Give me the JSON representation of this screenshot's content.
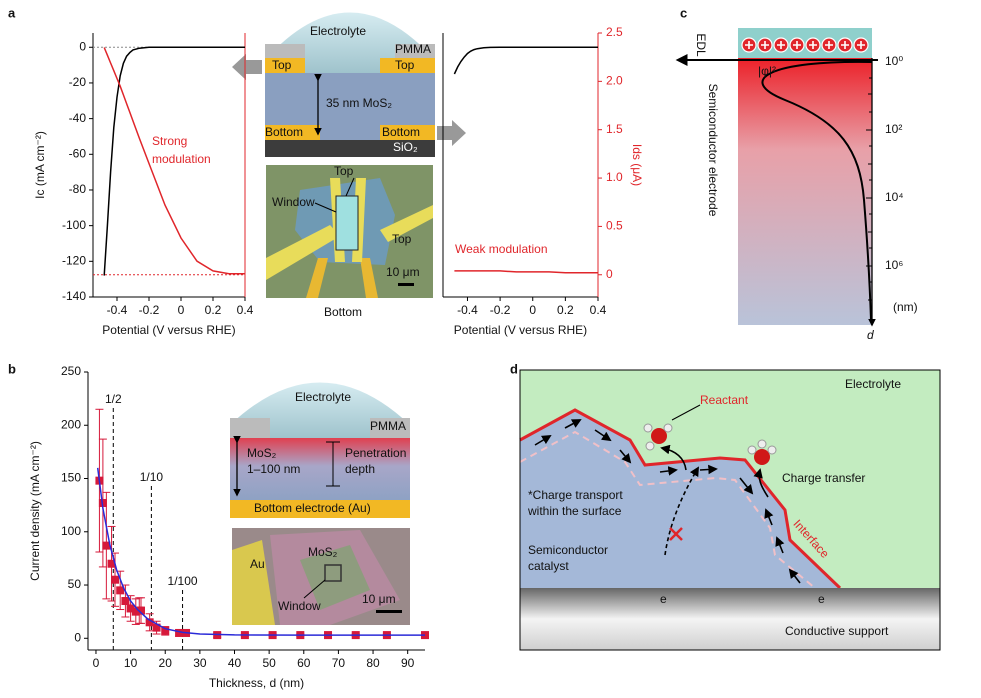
{
  "chart_data": [
    {
      "type": "line",
      "xlabel": "Potential (V versus RHE)",
      "ylabel": "Ic (mA cm⁻²)",
      "xlim": [
        -0.55,
        0.4
      ],
      "ylim": [
        -140,
        8
      ],
      "y2lim": [
        -0.23,
        2.5
      ],
      "xticks": [
        -0.4,
        -0.2,
        0,
        0.2,
        0.4
      ],
      "yticks": [
        0,
        -20,
        -40,
        -60,
        -80,
        -100,
        -120,
        -140
      ],
      "x": [
        -0.48,
        -0.46,
        -0.44,
        -0.42,
        -0.4,
        -0.38,
        -0.36,
        -0.34,
        -0.32,
        -0.3,
        -0.26,
        -0.2,
        -0.1,
        0,
        0.1,
        0.2,
        0.3,
        0.4
      ],
      "series": [
        {
          "color": "#000000",
          "values": [
            -128,
            -100,
            -70,
            -45,
            -28,
            -16,
            -9,
            -5,
            -3,
            -1.5,
            -0.5,
            0,
            0,
            0,
            0,
            0,
            0,
            0
          ]
        },
        {
          "color": "#e0262b",
          "axis": "y2",
          "values": [
            2.35,
            2.27,
            2.19,
            2.11,
            2.03,
            1.95,
            1.86,
            1.77,
            1.68,
            1.59,
            1.41,
            1.15,
            0.72,
            0.38,
            0.14,
            0.04,
            0.01,
            0.01
          ]
        }
      ],
      "annotation": [
        "Strong",
        "modulation"
      ]
    },
    {
      "type": "line",
      "xlabel": "Potential (V versus RHE)",
      "y2label": "Ids (μA)",
      "xlim": [
        -0.55,
        0.4
      ],
      "ylim": [
        -140,
        8
      ],
      "y2lim": [
        -0.23,
        2.5
      ],
      "xticks": [
        -0.4,
        -0.2,
        0,
        0.2,
        0.4
      ],
      "y2ticks": [
        0,
        0.5,
        {
          "value": 1,
          "label": "1.0"
        },
        1.5,
        {
          "value": 2,
          "label": "2.0"
        },
        2.5
      ],
      "x": [
        -0.48,
        -0.46,
        -0.44,
        -0.42,
        -0.4,
        -0.38,
        -0.36,
        -0.34,
        -0.32,
        -0.3,
        -0.26,
        -0.2,
        -0.1,
        0,
        0.1,
        0.2,
        0.3,
        0.4
      ],
      "series": [
        {
          "color": "#000000",
          "values": [
            -15,
            -11,
            -8,
            -5.5,
            -3.5,
            -2.2,
            -1.3,
            -0.8,
            -0.5,
            -0.3,
            -0.1,
            0,
            0,
            0,
            0,
            0,
            0,
            0
          ]
        },
        {
          "color": "#e0262b",
          "axis": "y2",
          "values": [
            0.04,
            0.04,
            0.04,
            0.04,
            0.04,
            0.04,
            0.04,
            0.04,
            0.04,
            0.04,
            0.04,
            0.04,
            0.03,
            0.03,
            0.03,
            0.02,
            0.02,
            0.02
          ]
        }
      ],
      "annotation": [
        "Weak modulation"
      ]
    },
    {
      "type": "scatter",
      "xlabel": "Thickness, d (nm)",
      "ylabel": "Current density (mA cm⁻²)",
      "xlim": [
        -2.3,
        95
      ],
      "ylim": [
        -11,
        250
      ],
      "xticks": [
        0,
        10,
        20,
        30,
        40,
        50,
        60,
        70,
        80,
        90
      ],
      "yticks": [
        0,
        50,
        100,
        150,
        200,
        250
      ],
      "series": [
        {
          "color": "#d6193a",
          "x": [
            1,
            2,
            3,
            4.5,
            5.5,
            7,
            8.5,
            10,
            11.5,
            12.5,
            13,
            15.5,
            17.5,
            20,
            24,
            26,
            35,
            43,
            51,
            59,
            67,
            75,
            84,
            95
          ],
          "values": [
            148,
            127,
            87,
            70,
            55,
            45,
            35,
            28,
            25,
            26,
            26,
            15,
            10,
            7,
            5,
            5,
            3,
            3,
            3,
            3,
            3,
            3,
            3,
            3
          ],
          "errors": [
            67,
            60,
            50,
            35,
            25,
            18,
            15,
            12,
            12,
            12,
            12,
            8,
            6,
            4,
            3,
            3,
            2,
            1,
            1,
            1,
            1,
            1,
            1,
            1
          ]
        },
        {
          "color": "#2a2ad8",
          "x": [
            0.5,
            2,
            4,
            6,
            8,
            10,
            12,
            15,
            20,
            25,
            30,
            40,
            60,
            95
          ],
          "values": [
            160,
            122,
            88,
            64,
            47,
            35,
            27,
            18,
            9,
            5.5,
            4,
            3.2,
            3,
            3
          ]
        }
      ],
      "vlines": [
        {
          "value": 5,
          "label": "1/2"
        },
        {
          "value": 16,
          "label": "1/10"
        },
        {
          "value": 25,
          "label": "1/100"
        }
      ]
    }
  ],
  "labels": {
    "a": "a",
    "b": "b",
    "c": "c",
    "d": "d"
  },
  "schematic_a": {
    "electrolyte": "Electrolyte",
    "pmma": "PMMA",
    "top_left": "Top",
    "top_right": "Top",
    "thickness": "35 nm MoS₂",
    "bottom_left": "Bottom",
    "bottom_right": "Bottom",
    "substrate": "SiO₂"
  },
  "micrograph_a": {
    "top1": "Top",
    "window": "Window",
    "top2": "Top",
    "scale": "10 μm",
    "bottom": "Bottom"
  },
  "schematic_b": {
    "electrolyte": "Electrolyte",
    "pmma": "PMMA",
    "material": "MoS₂",
    "range": "1–100 nm",
    "depth": [
      "Penetration",
      "depth"
    ],
    "electrode": "Bottom electrode (Au)"
  },
  "micrograph_b": {
    "au": "Au",
    "material": "MoS₂",
    "window": "Window",
    "scale": "10 μm"
  },
  "panel_c": {
    "edl": "EDL",
    "wave": "|φ|²",
    "electrode": "Semiconductor electrode",
    "tick_labels": [
      "10⁰",
      "10²",
      "10⁴",
      "10⁶"
    ],
    "unit": "(nm)",
    "axis": "d"
  },
  "panel_d": {
    "electrolyte": "Electrolyte",
    "reactant": "Reactant",
    "charge_transfer": "Charge transfer",
    "transport": [
      "*Charge transport",
      "within the surface"
    ],
    "catalyst": [
      "Semiconductor",
      "catalyst"
    ],
    "interface": "Interface",
    "carrier_left": "e",
    "carrier_right": "e",
    "support": "Conductive support"
  }
}
